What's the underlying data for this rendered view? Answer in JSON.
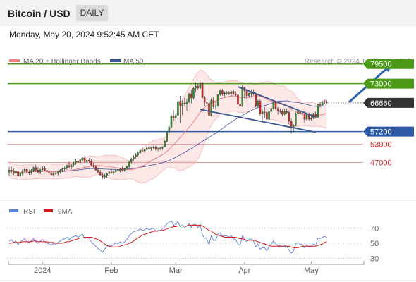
{
  "header": {
    "pair": "Bitcoin / USD",
    "period": "DAILY",
    "datetime": "Monday, May 20, 2024 9:52:45 AM CET"
  },
  "legend": {
    "bollinger": "MA 20 + Bollinger Bands",
    "ma50": "MA 50",
    "rsi": "RSI",
    "rsi_ma": "9MA",
    "credit": "Research © 2024 Trading Central"
  },
  "colors": {
    "resistance": "#4a9a16",
    "support": "#2f5aa8",
    "support_faint": "#e89090",
    "current": "#333333",
    "bollinger_line": "#f08080",
    "bollinger_fill": "#fde4e4",
    "ma50": "#39529a",
    "rsi": "#5b7fd6",
    "rsi_ma": "#d41c1c",
    "arrow": "#2b63b0",
    "trend": "#3a5590",
    "candle_up": "#2e8b2e",
    "candle_down": "#c62828"
  },
  "chart_data": {
    "type": "candlestick",
    "price_axis": {
      "min": 35000,
      "max": 82000
    },
    "levels": [
      {
        "value": 79500,
        "label": "79500",
        "kind": "resistance"
      },
      {
        "value": 73000,
        "label": "73000",
        "kind": "resistance"
      },
      {
        "value": 66660,
        "label": "66660",
        "kind": "current"
      },
      {
        "value": 57200,
        "label": "57200",
        "kind": "support"
      },
      {
        "value": 53000,
        "label": "53000",
        "kind": "support_faint"
      },
      {
        "value": 47000,
        "label": "47000",
        "kind": "support_faint"
      }
    ],
    "rsi_axis": {
      "min": 20,
      "max": 80,
      "ticks": [
        70,
        50,
        30
      ]
    },
    "x_ticks": [
      {
        "label": "2024",
        "index": 15
      },
      {
        "label": "Feb",
        "index": 46
      },
      {
        "label": "Mar",
        "index": 75
      },
      {
        "label": "Apr",
        "index": 106
      },
      {
        "label": "May",
        "index": 136
      }
    ],
    "trendlines": [
      {
        "from": {
          "index": 86,
          "price": 64500
        },
        "to": {
          "index": 138,
          "price": 57000
        }
      },
      {
        "from": {
          "index": 103,
          "price": 72000
        },
        "to": {
          "index": 138,
          "price": 62000
        }
      }
    ],
    "projection": {
      "from": {
        "index": 153,
        "price": 66900
      },
      "to": {
        "index": 172,
        "price": 79300
      }
    },
    "candles": [
      {
        "o": 43800,
        "h": 45500,
        "l": 42500,
        "c": 44500
      },
      {
        "o": 44500,
        "h": 45600,
        "l": 43200,
        "c": 44000
      },
      {
        "o": 44000,
        "h": 45000,
        "l": 42800,
        "c": 43400
      },
      {
        "o": 43400,
        "h": 44600,
        "l": 42700,
        "c": 44100
      },
      {
        "o": 44100,
        "h": 44800,
        "l": 41600,
        "c": 42500
      },
      {
        "o": 42500,
        "h": 43800,
        "l": 41600,
        "c": 43300
      },
      {
        "o": 43300,
        "h": 44700,
        "l": 42600,
        "c": 44200
      },
      {
        "o": 44200,
        "h": 45300,
        "l": 43400,
        "c": 44700
      },
      {
        "o": 44700,
        "h": 45500,
        "l": 43300,
        "c": 43800
      },
      {
        "o": 43800,
        "h": 44600,
        "l": 42900,
        "c": 43700
      },
      {
        "o": 43700,
        "h": 44800,
        "l": 43000,
        "c": 44300
      },
      {
        "o": 44300,
        "h": 45600,
        "l": 43800,
        "c": 45300
      },
      {
        "o": 45300,
        "h": 46200,
        "l": 44000,
        "c": 44500
      },
      {
        "o": 44500,
        "h": 45400,
        "l": 43300,
        "c": 43800
      },
      {
        "o": 43800,
        "h": 45000,
        "l": 43100,
        "c": 44600
      },
      {
        "o": 44600,
        "h": 45700,
        "l": 44000,
        "c": 45000
      },
      {
        "o": 45000,
        "h": 45800,
        "l": 44200,
        "c": 44400
      },
      {
        "o": 44400,
        "h": 45000,
        "l": 43500,
        "c": 43900
      },
      {
        "o": 43900,
        "h": 44700,
        "l": 43200,
        "c": 43600
      },
      {
        "o": 43600,
        "h": 44300,
        "l": 42600,
        "c": 42900
      },
      {
        "o": 42900,
        "h": 43900,
        "l": 42300,
        "c": 43600
      },
      {
        "o": 43600,
        "h": 44400,
        "l": 42900,
        "c": 43300
      },
      {
        "o": 43300,
        "h": 44100,
        "l": 42700,
        "c": 43800
      },
      {
        "o": 43800,
        "h": 44800,
        "l": 43300,
        "c": 44400
      },
      {
        "o": 44400,
        "h": 45300,
        "l": 43800,
        "c": 44900
      },
      {
        "o": 44900,
        "h": 45800,
        "l": 44200,
        "c": 45100
      },
      {
        "o": 45100,
        "h": 46300,
        "l": 44600,
        "c": 46000
      },
      {
        "o": 46000,
        "h": 47200,
        "l": 45000,
        "c": 45500
      },
      {
        "o": 45500,
        "h": 46400,
        "l": 44800,
        "c": 46200
      },
      {
        "o": 46200,
        "h": 47300,
        "l": 45600,
        "c": 46800
      },
      {
        "o": 46800,
        "h": 48200,
        "l": 46200,
        "c": 47500
      },
      {
        "o": 47500,
        "h": 48500,
        "l": 46500,
        "c": 47000
      },
      {
        "o": 47000,
        "h": 48100,
        "l": 46300,
        "c": 47800
      },
      {
        "o": 47800,
        "h": 49000,
        "l": 47300,
        "c": 48500
      },
      {
        "o": 48500,
        "h": 49200,
        "l": 46800,
        "c": 47200
      },
      {
        "o": 47200,
        "h": 48100,
        "l": 46400,
        "c": 47700
      },
      {
        "o": 47700,
        "h": 48400,
        "l": 46900,
        "c": 47400
      },
      {
        "o": 47400,
        "h": 48000,
        "l": 45800,
        "c": 46100
      },
      {
        "o": 46100,
        "h": 46900,
        "l": 45300,
        "c": 45600
      },
      {
        "o": 45600,
        "h": 46200,
        "l": 44200,
        "c": 44500
      },
      {
        "o": 44500,
        "h": 45200,
        "l": 43400,
        "c": 43800
      },
      {
        "o": 43800,
        "h": 44500,
        "l": 42600,
        "c": 42900
      },
      {
        "o": 42900,
        "h": 43700,
        "l": 41600,
        "c": 42200
      },
      {
        "o": 42200,
        "h": 43300,
        "l": 41500,
        "c": 42700
      },
      {
        "o": 42700,
        "h": 43600,
        "l": 41900,
        "c": 43300
      },
      {
        "o": 43300,
        "h": 44300,
        "l": 42700,
        "c": 43900
      },
      {
        "o": 43900,
        "h": 44700,
        "l": 43200,
        "c": 43500
      },
      {
        "o": 43500,
        "h": 44400,
        "l": 42900,
        "c": 43900
      },
      {
        "o": 43900,
        "h": 44900,
        "l": 43400,
        "c": 44500
      },
      {
        "o": 44500,
        "h": 45300,
        "l": 43900,
        "c": 44200
      },
      {
        "o": 44200,
        "h": 45200,
        "l": 43700,
        "c": 44800
      },
      {
        "o": 44800,
        "h": 45600,
        "l": 44000,
        "c": 44400
      },
      {
        "o": 44400,
        "h": 45200,
        "l": 43900,
        "c": 45000
      },
      {
        "o": 45000,
        "h": 46000,
        "l": 44500,
        "c": 45600
      },
      {
        "o": 45600,
        "h": 47500,
        "l": 45000,
        "c": 47200
      },
      {
        "o": 47200,
        "h": 48600,
        "l": 46600,
        "c": 48100
      },
      {
        "o": 48100,
        "h": 49400,
        "l": 47500,
        "c": 48900
      },
      {
        "o": 48900,
        "h": 50100,
        "l": 48200,
        "c": 49500
      },
      {
        "o": 49500,
        "h": 50600,
        "l": 48800,
        "c": 50200
      },
      {
        "o": 50200,
        "h": 51500,
        "l": 49700,
        "c": 51000
      },
      {
        "o": 51000,
        "h": 51800,
        "l": 50300,
        "c": 50800
      },
      {
        "o": 50800,
        "h": 51700,
        "l": 50200,
        "c": 51200
      },
      {
        "o": 51200,
        "h": 52300,
        "l": 50700,
        "c": 51800
      },
      {
        "o": 51800,
        "h": 52400,
        "l": 51000,
        "c": 51500
      },
      {
        "o": 51500,
        "h": 52300,
        "l": 50900,
        "c": 51900
      },
      {
        "o": 51900,
        "h": 52600,
        "l": 51300,
        "c": 52000
      },
      {
        "o": 52000,
        "h": 52500,
        "l": 51000,
        "c": 51300
      },
      {
        "o": 51300,
        "h": 52000,
        "l": 50700,
        "c": 51600
      },
      {
        "o": 51600,
        "h": 52200,
        "l": 51000,
        "c": 51700
      },
      {
        "o": 51700,
        "h": 52400,
        "l": 51100,
        "c": 52200
      },
      {
        "o": 52200,
        "h": 54400,
        "l": 52000,
        "c": 54000
      },
      {
        "o": 54000,
        "h": 57300,
        "l": 53700,
        "c": 57000
      },
      {
        "o": 57000,
        "h": 59300,
        "l": 56300,
        "c": 58700
      },
      {
        "o": 58700,
        "h": 62800,
        "l": 58200,
        "c": 62300
      },
      {
        "o": 62300,
        "h": 64300,
        "l": 60800,
        "c": 61600
      },
      {
        "o": 61600,
        "h": 63300,
        "l": 60300,
        "c": 62500
      },
      {
        "o": 62500,
        "h": 68000,
        "l": 62000,
        "c": 67200
      },
      {
        "o": 67200,
        "h": 69000,
        "l": 60000,
        "c": 65800
      },
      {
        "o": 65800,
        "h": 67500,
        "l": 62700,
        "c": 66600
      },
      {
        "o": 66600,
        "h": 68300,
        "l": 65600,
        "c": 66300
      },
      {
        "o": 66300,
        "h": 68100,
        "l": 64000,
        "c": 67100
      },
      {
        "o": 67100,
        "h": 70000,
        "l": 66600,
        "c": 69600
      },
      {
        "o": 69600,
        "h": 71000,
        "l": 66500,
        "c": 68300
      },
      {
        "o": 68300,
        "h": 72000,
        "l": 67900,
        "c": 71500
      },
      {
        "o": 71500,
        "h": 73300,
        "l": 70100,
        "c": 72200
      },
      {
        "o": 72200,
        "h": 73000,
        "l": 70800,
        "c": 71600
      },
      {
        "o": 71600,
        "h": 73800,
        "l": 71300,
        "c": 73100
      },
      {
        "o": 73100,
        "h": 73500,
        "l": 68100,
        "c": 68400
      },
      {
        "o": 68400,
        "h": 69000,
        "l": 65500,
        "c": 66800
      },
      {
        "o": 66800,
        "h": 68000,
        "l": 64500,
        "c": 66600
      },
      {
        "o": 66600,
        "h": 68000,
        "l": 62000,
        "c": 62500
      },
      {
        "o": 62500,
        "h": 68200,
        "l": 62300,
        "c": 67600
      },
      {
        "o": 67600,
        "h": 68600,
        "l": 64800,
        "c": 65400
      },
      {
        "o": 65400,
        "h": 67000,
        "l": 64500,
        "c": 65700
      },
      {
        "o": 65700,
        "h": 69500,
        "l": 65400,
        "c": 69400
      },
      {
        "o": 69400,
        "h": 71200,
        "l": 69000,
        "c": 70700
      },
      {
        "o": 70700,
        "h": 71300,
        "l": 69000,
        "c": 69700
      },
      {
        "o": 69700,
        "h": 70400,
        "l": 68700,
        "c": 69900
      },
      {
        "o": 69900,
        "h": 70500,
        "l": 69300,
        "c": 70000
      },
      {
        "o": 70000,
        "h": 70500,
        "l": 69200,
        "c": 69700
      },
      {
        "o": 69700,
        "h": 70700,
        "l": 68800,
        "c": 70400
      },
      {
        "o": 70400,
        "h": 71000,
        "l": 69300,
        "c": 69600
      },
      {
        "o": 69600,
        "h": 70500,
        "l": 68800,
        "c": 69300
      },
      {
        "o": 69300,
        "h": 71000,
        "l": 65800,
        "c": 66200
      },
      {
        "o": 66200,
        "h": 66900,
        "l": 64900,
        "c": 65600
      },
      {
        "o": 65600,
        "h": 72500,
        "l": 65300,
        "c": 71800
      },
      {
        "o": 71800,
        "h": 72000,
        "l": 68200,
        "c": 70700
      },
      {
        "o": 70700,
        "h": 71400,
        "l": 67700,
        "c": 68900
      },
      {
        "o": 68900,
        "h": 70700,
        "l": 68400,
        "c": 69800
      },
      {
        "o": 69800,
        "h": 71100,
        "l": 68700,
        "c": 70300
      },
      {
        "o": 70300,
        "h": 71100,
        "l": 69200,
        "c": 69700
      },
      {
        "o": 69700,
        "h": 70100,
        "l": 65200,
        "c": 65700
      },
      {
        "o": 65700,
        "h": 67800,
        "l": 65200,
        "c": 67300
      },
      {
        "o": 67300,
        "h": 67800,
        "l": 62200,
        "c": 63000
      },
      {
        "o": 63000,
        "h": 64400,
        "l": 60700,
        "c": 63700
      },
      {
        "o": 63700,
        "h": 65300,
        "l": 61500,
        "c": 63600
      },
      {
        "o": 63600,
        "h": 64600,
        "l": 59800,
        "c": 61200
      },
      {
        "o": 61200,
        "h": 64200,
        "l": 60900,
        "c": 63800
      },
      {
        "o": 63800,
        "h": 65400,
        "l": 63000,
        "c": 64900
      },
      {
        "o": 64900,
        "h": 67000,
        "l": 64400,
        "c": 66800
      },
      {
        "o": 66800,
        "h": 67200,
        "l": 64400,
        "c": 64800
      },
      {
        "o": 64800,
        "h": 65300,
        "l": 62800,
        "c": 64000
      },
      {
        "o": 64000,
        "h": 64800,
        "l": 63300,
        "c": 63900
      },
      {
        "o": 63900,
        "h": 64500,
        "l": 62200,
        "c": 62900
      },
      {
        "o": 62900,
        "h": 64700,
        "l": 62500,
        "c": 63800
      },
      {
        "o": 63800,
        "h": 64800,
        "l": 62900,
        "c": 63500
      },
      {
        "o": 63500,
        "h": 64200,
        "l": 59600,
        "c": 60600
      },
      {
        "o": 60600,
        "h": 61400,
        "l": 56600,
        "c": 58300
      },
      {
        "o": 58300,
        "h": 59600,
        "l": 56900,
        "c": 59100
      },
      {
        "o": 59100,
        "h": 63500,
        "l": 58900,
        "c": 63100
      },
      {
        "o": 63100,
        "h": 64400,
        "l": 62500,
        "c": 63900
      },
      {
        "o": 63900,
        "h": 64700,
        "l": 62800,
        "c": 63200
      },
      {
        "o": 63200,
        "h": 64000,
        "l": 62300,
        "c": 63100
      },
      {
        "o": 63100,
        "h": 63800,
        "l": 60100,
        "c": 61200
      },
      {
        "o": 61200,
        "h": 63500,
        "l": 60700,
        "c": 62900
      },
      {
        "o": 62900,
        "h": 63500,
        "l": 60700,
        "c": 61300
      },
      {
        "o": 61300,
        "h": 62700,
        "l": 60800,
        "c": 61600
      },
      {
        "o": 61600,
        "h": 63400,
        "l": 61300,
        "c": 62900
      },
      {
        "o": 62900,
        "h": 63800,
        "l": 61500,
        "c": 61900
      },
      {
        "o": 61900,
        "h": 66500,
        "l": 61700,
        "c": 66200
      },
      {
        "o": 66200,
        "h": 67000,
        "l": 65100,
        "c": 65900
      },
      {
        "o": 65900,
        "h": 67400,
        "l": 65600,
        "c": 66900
      },
      {
        "o": 66900,
        "h": 67700,
        "l": 66300,
        "c": 67100
      },
      {
        "o": 67100,
        "h": 67500,
        "l": 66400,
        "c": 66700
      }
    ],
    "rsi": [
      53,
      55,
      51,
      53,
      48,
      52,
      54,
      56,
      52,
      51,
      53,
      56,
      52,
      50,
      53,
      55,
      52,
      50,
      49,
      47,
      50,
      48,
      51,
      53,
      55,
      56,
      58,
      55,
      57,
      59,
      60,
      58,
      60,
      62,
      56,
      58,
      57,
      52,
      49,
      46,
      43,
      41,
      38,
      42,
      45,
      48,
      46,
      48,
      51,
      49,
      52,
      50,
      52,
      55,
      60,
      63,
      65,
      66,
      67,
      69,
      67,
      68,
      70,
      68,
      69,
      70,
      66,
      67,
      67,
      69,
      72,
      76,
      78,
      80,
      74,
      75,
      79,
      72,
      74,
      71,
      73,
      76,
      71,
      75,
      75,
      71,
      75,
      61,
      57,
      56,
      48,
      60,
      54,
      54,
      62,
      64,
      59,
      60,
      60,
      58,
      60,
      56,
      55,
      49,
      47,
      60,
      56,
      52,
      55,
      56,
      53,
      45,
      49,
      42,
      44,
      44,
      40,
      46,
      49,
      53,
      49,
      47,
      47,
      45,
      47,
      46,
      41,
      37,
      40,
      49,
      51,
      49,
      48,
      44,
      48,
      45,
      46,
      49,
      47,
      57,
      56,
      58,
      59,
      58
    ],
    "rsi_ma": [
      50,
      50,
      51,
      51,
      51,
      51,
      52,
      52,
      52,
      52,
      52,
      53,
      53,
      52,
      52,
      52,
      52,
      52,
      51,
      51,
      51,
      50,
      50,
      50,
      50,
      51,
      52,
      52,
      53,
      54,
      55,
      56,
      57,
      57,
      58,
      58,
      58,
      58,
      57,
      56,
      55,
      53,
      51,
      49,
      47,
      46,
      45,
      45,
      45,
      45,
      46,
      47,
      48,
      48,
      50,
      51,
      53,
      55,
      57,
      59,
      61,
      62,
      63,
      64,
      65,
      66,
      66,
      66,
      67,
      67,
      68,
      69,
      70,
      71,
      72,
      72,
      73,
      73,
      73,
      73,
      73,
      74,
      74,
      74,
      74,
      74,
      74,
      73,
      71,
      69,
      67,
      66,
      64,
      62,
      61,
      60,
      59,
      58,
      58,
      58,
      58,
      58,
      58,
      57,
      56,
      56,
      55,
      54,
      54,
      54,
      54,
      53,
      52,
      51,
      50,
      49,
      48,
      47,
      46,
      46,
      46,
      46,
      46,
      46,
      46,
      46,
      46,
      45,
      44,
      44,
      44,
      45,
      46,
      46,
      46,
      46,
      46,
      46,
      46,
      47,
      48,
      49,
      51,
      52
    ]
  }
}
